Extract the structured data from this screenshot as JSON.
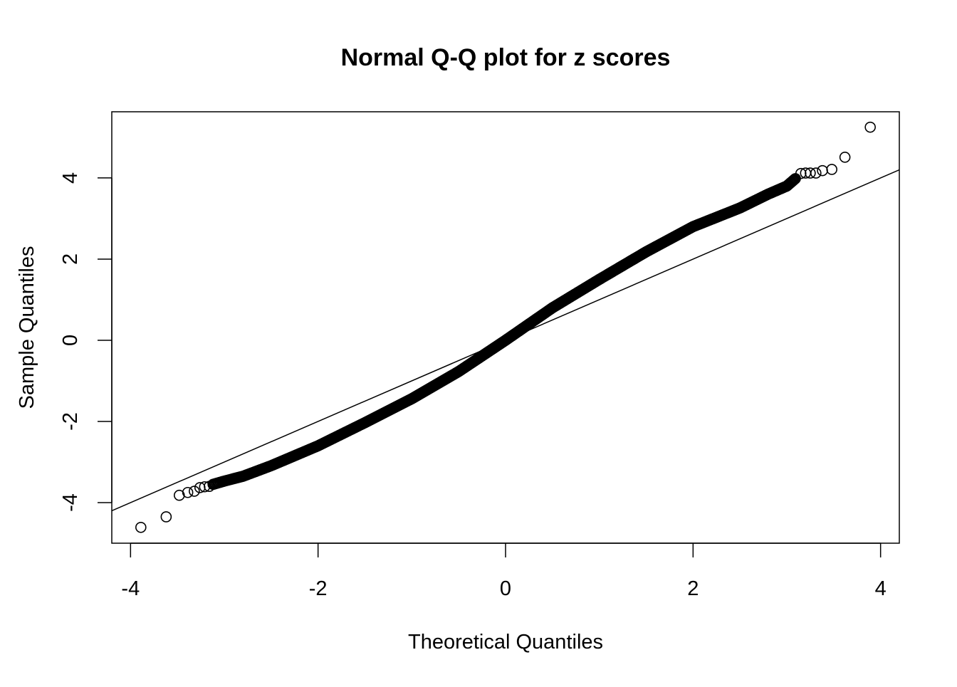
{
  "chart_data": {
    "type": "scatter",
    "title": "Normal Q-Q plot for z scores",
    "xlabel": "Theoretical Quantiles",
    "ylabel": "Sample Quantiles",
    "xlim": [
      -4.2,
      4.2
    ],
    "ylim": [
      -5.0,
      5.63
    ],
    "xticks": [
      -4,
      -2,
      0,
      2,
      4
    ],
    "yticks": [
      -4,
      -2,
      0,
      2,
      4
    ],
    "grid": false,
    "reference_line": {
      "slope": 1.0,
      "intercept": 0.0
    },
    "tail_points": [
      [
        -3.89,
        -4.61
      ],
      [
        -3.62,
        -4.35
      ],
      [
        -3.48,
        -3.82
      ],
      [
        -3.39,
        -3.75
      ],
      [
        -3.32,
        -3.72
      ],
      [
        -3.26,
        -3.63
      ],
      [
        -3.21,
        -3.61
      ],
      [
        -3.16,
        -3.6
      ],
      [
        3.15,
        4.11
      ],
      [
        3.2,
        4.12
      ],
      [
        3.25,
        4.12
      ],
      [
        3.31,
        4.12
      ],
      [
        3.38,
        4.18
      ],
      [
        3.48,
        4.21
      ],
      [
        3.62,
        4.51
      ],
      [
        3.89,
        5.25
      ]
    ],
    "dense_body": [
      [
        -3.12,
        -3.55
      ],
      [
        -3.0,
        -3.47
      ],
      [
        -2.8,
        -3.35
      ],
      [
        -2.5,
        -3.09
      ],
      [
        -2.0,
        -2.6
      ],
      [
        -1.5,
        -2.03
      ],
      [
        -1.0,
        -1.44
      ],
      [
        -0.5,
        -0.77
      ],
      [
        0.0,
        0.0
      ],
      [
        0.5,
        0.8
      ],
      [
        1.0,
        1.5
      ],
      [
        1.5,
        2.18
      ],
      [
        2.0,
        2.8
      ],
      [
        2.5,
        3.26
      ],
      [
        2.8,
        3.6
      ],
      [
        3.0,
        3.8
      ],
      [
        3.1,
        4.0
      ]
    ]
  }
}
